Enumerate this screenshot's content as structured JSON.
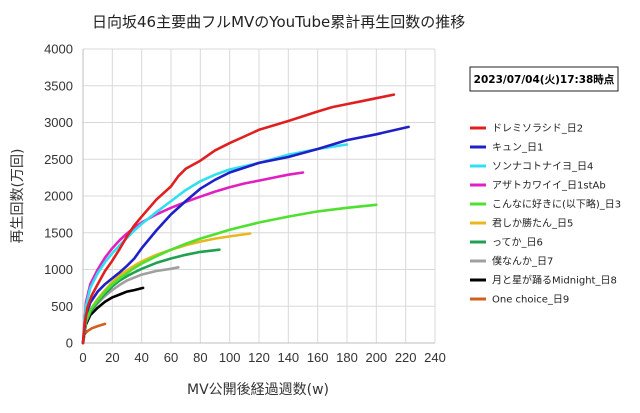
{
  "chart_data": {
    "type": "line",
    "title": "日向坂46主要曲フルMVのYouTube累計再生回数の推移",
    "timestamp": "2023/07/04(火)17:38時点",
    "xlabel": "MV公開後経過週数(w)",
    "ylabel": "再生回数(万回)",
    "xlim": [
      0,
      240
    ],
    "ylim": [
      0,
      4000
    ],
    "x_ticks": [
      "0",
      "20",
      "40",
      "60",
      "80",
      "100",
      "120",
      "140",
      "160",
      "180",
      "200",
      "220",
      "240"
    ],
    "y_ticks": [
      "0",
      "500",
      "1000",
      "1500",
      "2000",
      "2500",
      "3000",
      "3500",
      "4000"
    ],
    "grid": true,
    "legend_position": "right",
    "series": [
      {
        "name": "ドレミソラシド_日2",
        "color": "#e02020",
        "points": [
          [
            0,
            0
          ],
          [
            1,
            250
          ],
          [
            3,
            480
          ],
          [
            6,
            650
          ],
          [
            10,
            800
          ],
          [
            15,
            980
          ],
          [
            20,
            1120
          ],
          [
            25,
            1280
          ],
          [
            30,
            1450
          ],
          [
            35,
            1600
          ],
          [
            40,
            1720
          ],
          [
            50,
            1950
          ],
          [
            60,
            2130
          ],
          [
            65,
            2270
          ],
          [
            70,
            2370
          ],
          [
            80,
            2480
          ],
          [
            90,
            2620
          ],
          [
            100,
            2720
          ],
          [
            110,
            2810
          ],
          [
            120,
            2900
          ],
          [
            140,
            3020
          ],
          [
            160,
            3150
          ],
          [
            170,
            3210
          ],
          [
            180,
            3250
          ],
          [
            190,
            3290
          ],
          [
            200,
            3330
          ],
          [
            212,
            3380
          ]
        ]
      },
      {
        "name": "キュン_日1",
        "color": "#2020c8",
        "points": [
          [
            0,
            0
          ],
          [
            2,
            380
          ],
          [
            5,
            550
          ],
          [
            10,
            700
          ],
          [
            15,
            800
          ],
          [
            20,
            880
          ],
          [
            25,
            960
          ],
          [
            30,
            1050
          ],
          [
            35,
            1150
          ],
          [
            40,
            1290
          ],
          [
            50,
            1530
          ],
          [
            60,
            1750
          ],
          [
            70,
            1930
          ],
          [
            80,
            2100
          ],
          [
            90,
            2220
          ],
          [
            100,
            2320
          ],
          [
            120,
            2450
          ],
          [
            140,
            2530
          ],
          [
            160,
            2640
          ],
          [
            180,
            2760
          ],
          [
            200,
            2840
          ],
          [
            222,
            2940
          ]
        ]
      },
      {
        "name": "ソンナコトナイヨ_日4",
        "color": "#30e0f0",
        "points": [
          [
            0,
            0
          ],
          [
            2,
            500
          ],
          [
            5,
            750
          ],
          [
            10,
            950
          ],
          [
            15,
            1100
          ],
          [
            20,
            1220
          ],
          [
            25,
            1330
          ],
          [
            30,
            1430
          ],
          [
            35,
            1530
          ],
          [
            40,
            1620
          ],
          [
            50,
            1780
          ],
          [
            60,
            1930
          ],
          [
            70,
            2080
          ],
          [
            80,
            2200
          ],
          [
            90,
            2290
          ],
          [
            100,
            2360
          ],
          [
            120,
            2450
          ],
          [
            140,
            2560
          ],
          [
            160,
            2640
          ],
          [
            180,
            2700
          ]
        ]
      },
      {
        "name": "アザトカワイイ_日1stAb",
        "color": "#e020c0",
        "points": [
          [
            0,
            0
          ],
          [
            2,
            550
          ],
          [
            5,
            800
          ],
          [
            10,
            1000
          ],
          [
            15,
            1160
          ],
          [
            20,
            1290
          ],
          [
            25,
            1400
          ],
          [
            30,
            1490
          ],
          [
            35,
            1570
          ],
          [
            40,
            1640
          ],
          [
            50,
            1750
          ],
          [
            60,
            1840
          ],
          [
            70,
            1920
          ],
          [
            80,
            1990
          ],
          [
            90,
            2060
          ],
          [
            100,
            2120
          ],
          [
            110,
            2170
          ],
          [
            120,
            2210
          ],
          [
            130,
            2250
          ],
          [
            140,
            2290
          ],
          [
            150,
            2320
          ]
        ]
      },
      {
        "name": "こんなに好きに(以下略)_日3",
        "color": "#50e030",
        "points": [
          [
            0,
            0
          ],
          [
            2,
            300
          ],
          [
            5,
            450
          ],
          [
            10,
            580
          ],
          [
            15,
            700
          ],
          [
            20,
            800
          ],
          [
            25,
            880
          ],
          [
            30,
            950
          ],
          [
            35,
            1020
          ],
          [
            40,
            1080
          ],
          [
            50,
            1180
          ],
          [
            60,
            1270
          ],
          [
            70,
            1350
          ],
          [
            80,
            1420
          ],
          [
            90,
            1480
          ],
          [
            100,
            1540
          ],
          [
            110,
            1590
          ],
          [
            120,
            1640
          ],
          [
            140,
            1720
          ],
          [
            160,
            1790
          ],
          [
            180,
            1840
          ],
          [
            200,
            1880
          ]
        ]
      },
      {
        "name": "君しか勝たん_日5",
        "color": "#e8b820",
        "points": [
          [
            0,
            0
          ],
          [
            2,
            300
          ],
          [
            5,
            450
          ],
          [
            10,
            600
          ],
          [
            15,
            720
          ],
          [
            20,
            830
          ],
          [
            25,
            920
          ],
          [
            30,
            990
          ],
          [
            35,
            1050
          ],
          [
            40,
            1110
          ],
          [
            50,
            1200
          ],
          [
            60,
            1270
          ],
          [
            70,
            1330
          ],
          [
            80,
            1380
          ],
          [
            90,
            1420
          ],
          [
            100,
            1450
          ],
          [
            114,
            1490
          ]
        ]
      },
      {
        "name": "ってか_日6",
        "color": "#20a050",
        "points": [
          [
            0,
            0
          ],
          [
            2,
            280
          ],
          [
            5,
            420
          ],
          [
            10,
            560
          ],
          [
            15,
            670
          ],
          [
            20,
            770
          ],
          [
            25,
            850
          ],
          [
            30,
            910
          ],
          [
            35,
            960
          ],
          [
            40,
            1010
          ],
          [
            50,
            1090
          ],
          [
            60,
            1150
          ],
          [
            70,
            1200
          ],
          [
            80,
            1240
          ],
          [
            93,
            1270
          ]
        ]
      },
      {
        "name": "僕なんか_日7",
        "color": "#a0a0a0",
        "points": [
          [
            0,
            0
          ],
          [
            2,
            280
          ],
          [
            5,
            420
          ],
          [
            10,
            540
          ],
          [
            15,
            640
          ],
          [
            20,
            720
          ],
          [
            25,
            790
          ],
          [
            30,
            850
          ],
          [
            35,
            890
          ],
          [
            40,
            930
          ],
          [
            50,
            980
          ],
          [
            60,
            1010
          ],
          [
            65,
            1030
          ]
        ]
      },
      {
        "name": "月と星が踊るMidnight_日8",
        "color": "#000000",
        "points": [
          [
            0,
            0
          ],
          [
            2,
            250
          ],
          [
            5,
            380
          ],
          [
            10,
            480
          ],
          [
            15,
            560
          ],
          [
            20,
            620
          ],
          [
            25,
            660
          ],
          [
            30,
            700
          ],
          [
            35,
            720
          ],
          [
            41,
            750
          ]
        ]
      },
      {
        "name": "One choice_日9",
        "color": "#d06020",
        "points": [
          [
            0,
            0
          ],
          [
            1,
            120
          ],
          [
            3,
            160
          ],
          [
            6,
            200
          ],
          [
            10,
            230
          ],
          [
            15,
            260
          ]
        ]
      }
    ]
  }
}
